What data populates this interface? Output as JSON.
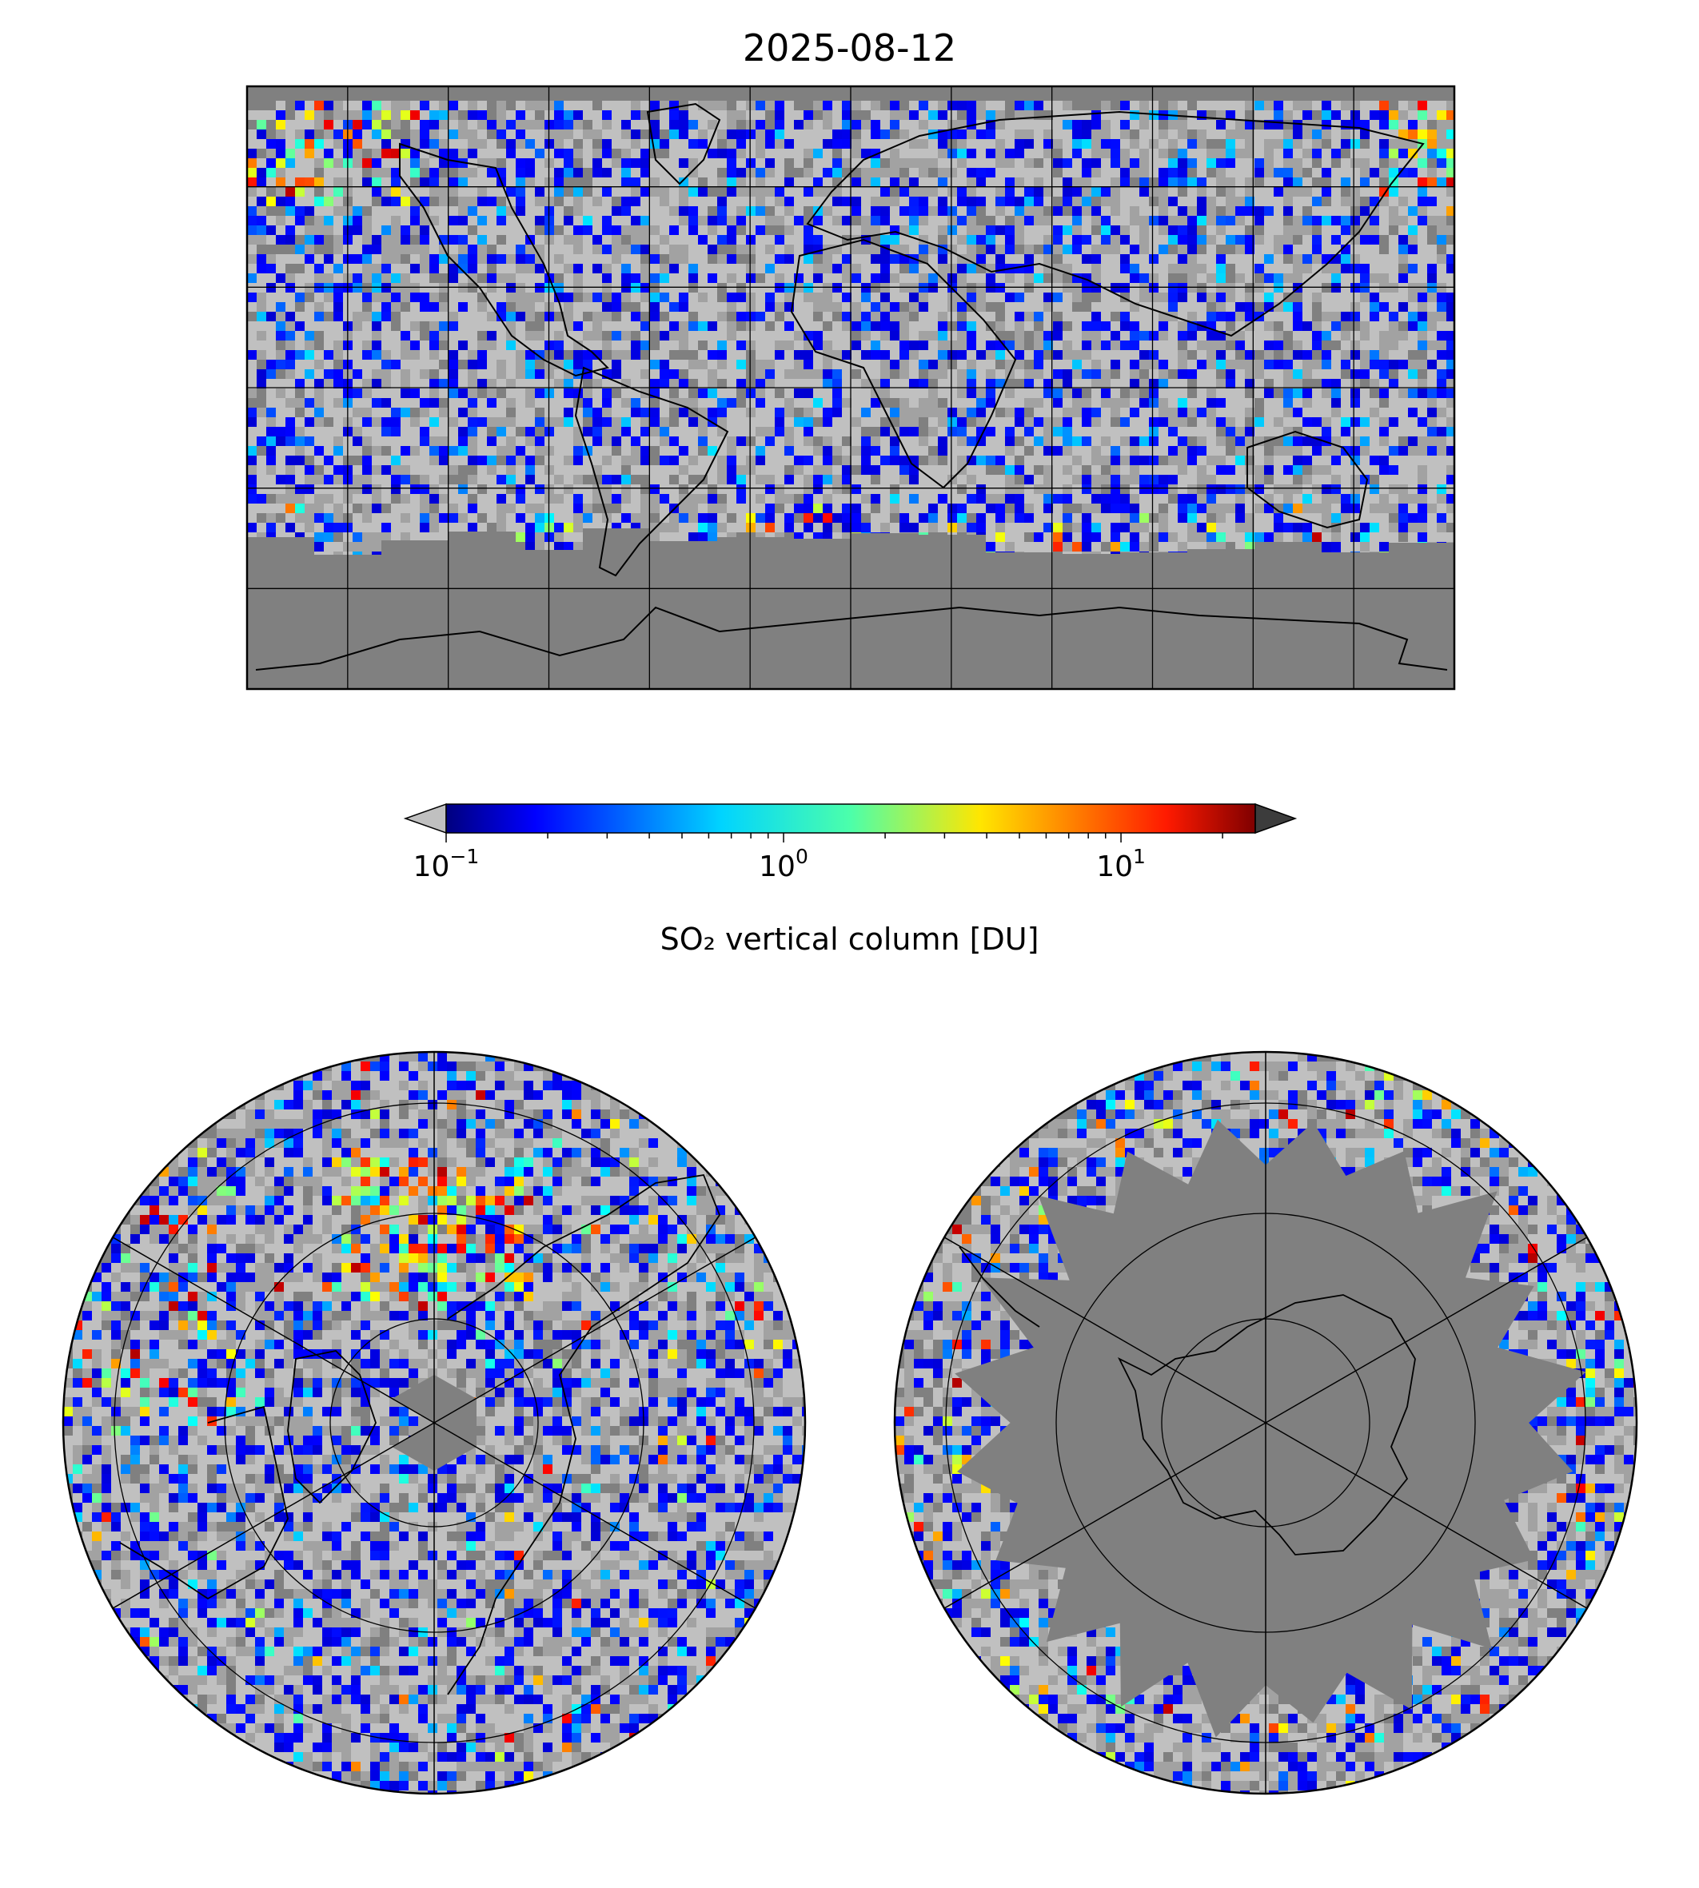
{
  "title": "2025-08-12",
  "colorbar": {
    "label": "SO₂ vertical column [DU]",
    "scale": "log",
    "range": [
      0.1,
      25
    ],
    "extend": "both",
    "colormap": "jet",
    "under_color": "#c0c0c0",
    "over_color": "#3c3c3c",
    "ticks": [
      {
        "value": 0.1,
        "base": "10",
        "exp": "−1"
      },
      {
        "value": 1,
        "base": "10",
        "exp": "0"
      },
      {
        "value": 10,
        "base": "10",
        "exp": "1"
      }
    ]
  },
  "maps": {
    "global": {
      "projection": "equirectangular",
      "background": "#808080"
    },
    "north_polar": {
      "projection": "north-polar-stereographic",
      "background": "#808080"
    },
    "south_polar": {
      "projection": "south-polar-stereographic",
      "background": "#808080"
    }
  },
  "colors": {
    "no_data": "#808080",
    "below_range_light": "#c0c0c0",
    "below_range_mid": "#a2a2a2",
    "coastline": "#000000"
  }
}
